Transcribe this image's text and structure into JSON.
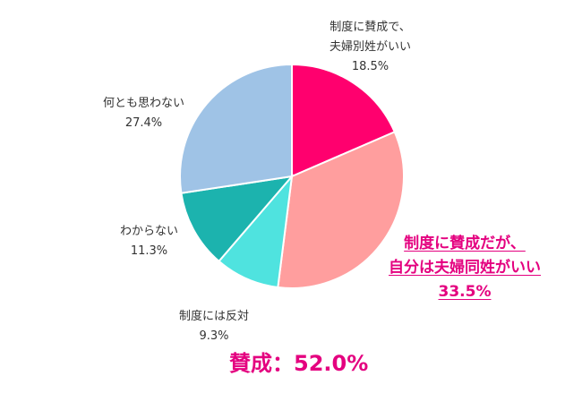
{
  "chart_data": {
    "type": "pie",
    "start_angle_deg": 0,
    "direction": "clockwise",
    "slices": [
      {
        "label_lines": [
          "制度に賛成で、",
          "夫婦別姓がいい"
        ],
        "value_text": "18.5%",
        "value": 18.5,
        "color": "#ff006e"
      },
      {
        "label_lines": [
          "制度に賛成だが、",
          "自分は夫婦同姓がいい"
        ],
        "value_text": "33.5%",
        "value": 33.5,
        "color": "#ff9e9e"
      },
      {
        "label_lines": [
          "制度には反対"
        ],
        "value_text": "9.3%",
        "value": 9.3,
        "color": "#4fe3df"
      },
      {
        "label_lines": [
          "わからない"
        ],
        "value_text": "11.3%",
        "value": 11.3,
        "color": "#1cb3ae"
      },
      {
        "label_lines": [
          "何とも思わない"
        ],
        "value_text": "27.4%",
        "value": 27.4,
        "color": "#9fc3e6"
      }
    ],
    "summary": "賛成：52.0%",
    "highlight_color": "#e4007f"
  }
}
